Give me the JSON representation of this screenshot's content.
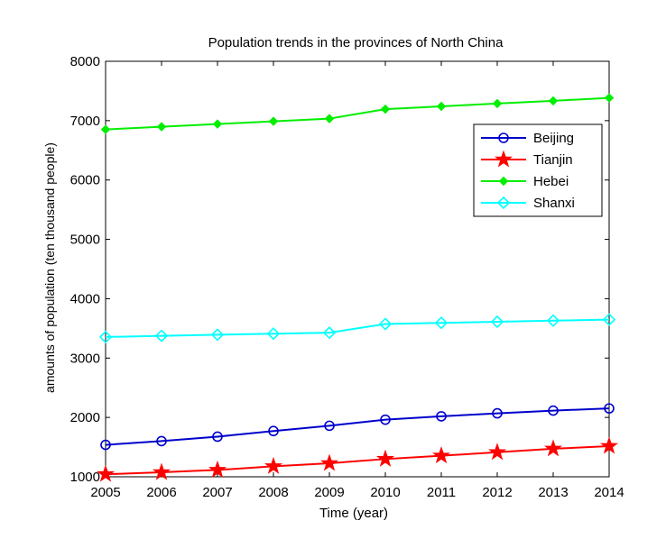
{
  "chart_data": {
    "type": "line",
    "title": "Population trends in the provinces of North China",
    "xlabel": "Time (year)",
    "ylabel": "amounts of population (ten thousand people)",
    "x": [
      2005,
      2006,
      2007,
      2008,
      2009,
      2010,
      2011,
      2012,
      2013,
      2014
    ],
    "xlim": [
      2005,
      2014
    ],
    "ylim": [
      1000,
      8000
    ],
    "xticks": [
      "2005",
      "2006",
      "2007",
      "2008",
      "2009",
      "2010",
      "2011",
      "2012",
      "2013",
      "2014"
    ],
    "yticks": [
      "1000",
      "2000",
      "3000",
      "4000",
      "5000",
      "6000",
      "7000",
      "8000"
    ],
    "grid": false,
    "legend_position": "top-right",
    "series": [
      {
        "name": "Beijing",
        "color": "#0000cc",
        "marker": "circle",
        "values": [
          1538,
          1601,
          1676,
          1771,
          1860,
          1962,
          2019,
          2069,
          2115,
          2152
        ]
      },
      {
        "name": "Tianjin",
        "color": "#ff0000",
        "marker": "star",
        "values": [
          1043,
          1075,
          1115,
          1176,
          1228,
          1299,
          1355,
          1413,
          1472,
          1517
        ]
      },
      {
        "name": "Hebei",
        "color": "#00ee00",
        "marker": "diamond-small",
        "values": [
          6851,
          6898,
          6943,
          6989,
          7034,
          7194,
          7241,
          7288,
          7333,
          7384
        ]
      },
      {
        "name": "Shanxi",
        "color": "#00ffff",
        "marker": "diamond",
        "values": [
          3355,
          3375,
          3393,
          3411,
          3427,
          3574,
          3593,
          3611,
          3630,
          3648
        ]
      }
    ]
  }
}
